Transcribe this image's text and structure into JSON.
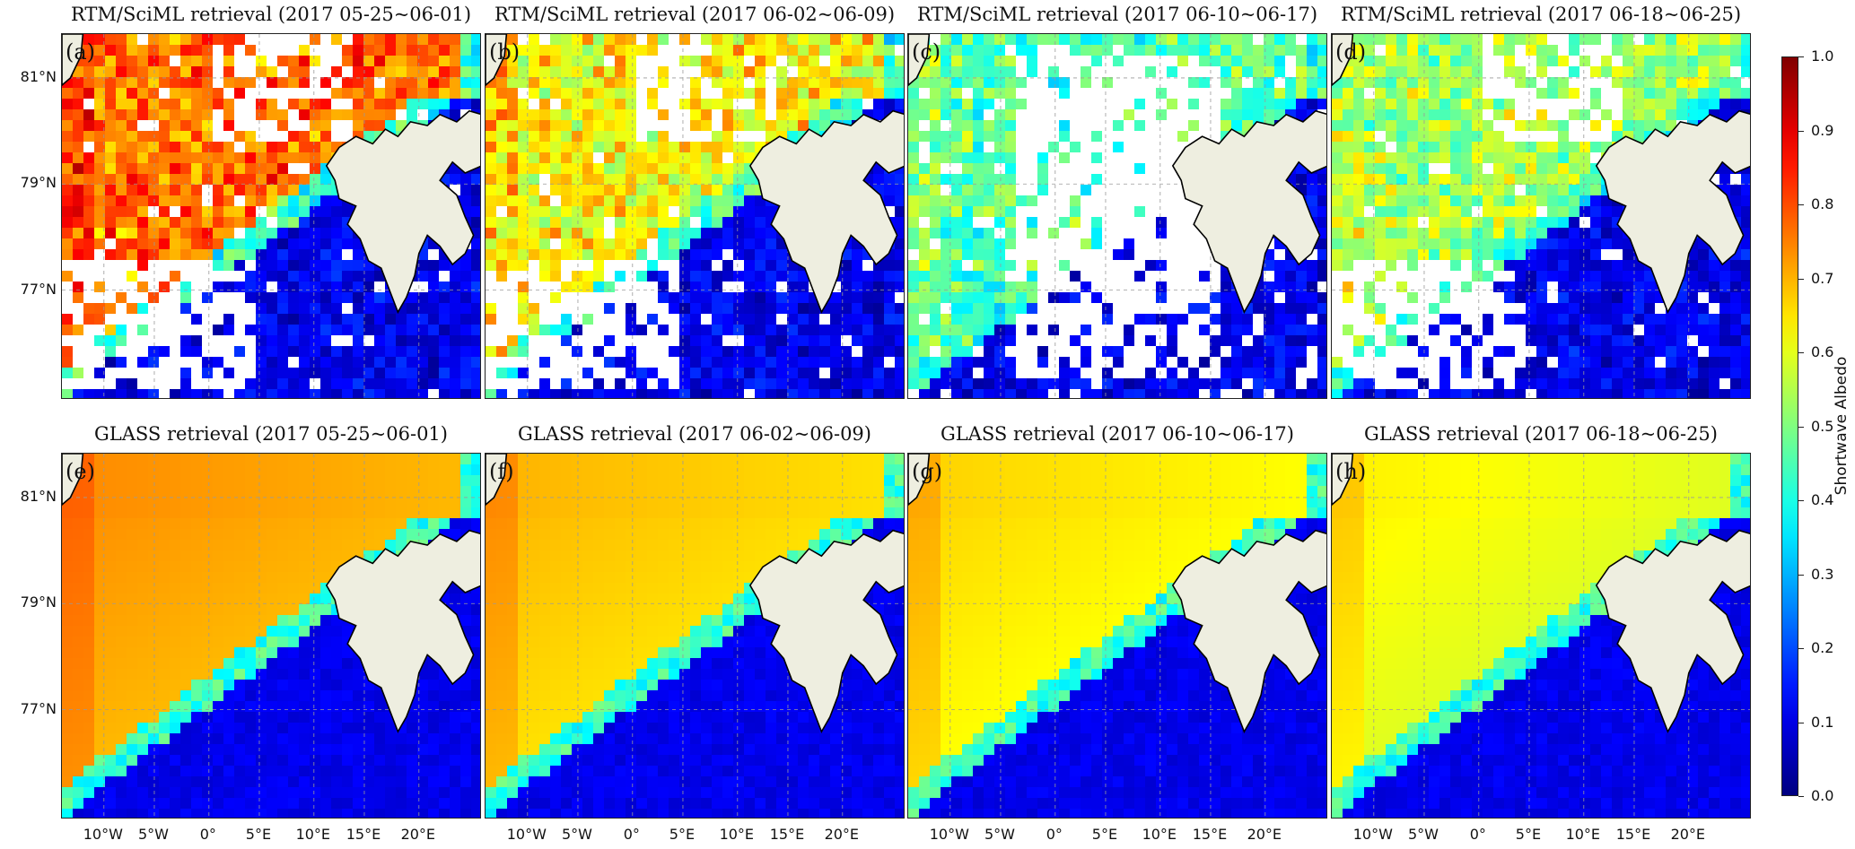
{
  "figure": {
    "colorbar": {
      "label": "Shortwave Albedo",
      "min": 0.0,
      "max": 1.0,
      "ticks": [
        "0.0",
        "0.1",
        "0.2",
        "0.3",
        "0.4",
        "0.5",
        "0.6",
        "0.7",
        "0.8",
        "0.9",
        "1.0"
      ],
      "colormap": "jet"
    },
    "lat_ticks": [
      "81°N",
      "79°N",
      "77°N"
    ],
    "lon_ticks": [
      "10°W",
      "5°W",
      "0°",
      "5°E",
      "10°E",
      "15°E",
      "20°E"
    ],
    "panels": [
      {
        "letter": "(a)",
        "title": "RTM/SciML retrieval (2017 05-25~06-01)",
        "ice_albedo": 0.86,
        "ocean_albedo": 0.08,
        "cloud_gaps": "moderate",
        "pattern": "rtm"
      },
      {
        "letter": "(b)",
        "title": "RTM/SciML retrieval (2017 06-02~06-09)",
        "ice_albedo": 0.72,
        "ocean_albedo": 0.08,
        "cloud_gaps": "moderate",
        "pattern": "rtm"
      },
      {
        "letter": "(c)",
        "title": "RTM/SciML retrieval (2017 06-10~06-17)",
        "ice_albedo": 0.55,
        "ocean_albedo": 0.08,
        "cloud_gaps": "heavy",
        "pattern": "rtm"
      },
      {
        "letter": "(d)",
        "title": "RTM/SciML retrieval (2017 06-18~06-25)",
        "ice_albedo": 0.62,
        "ocean_albedo": 0.08,
        "cloud_gaps": "moderate",
        "pattern": "rtm"
      },
      {
        "letter": "(e)",
        "title": "GLASS retrieval (2017 05-25~06-01)",
        "ice_albedo": 0.74,
        "ocean_albedo": 0.08,
        "cloud_gaps": "none",
        "pattern": "glass"
      },
      {
        "letter": "(f)",
        "title": "GLASS retrieval (2017 06-02~06-09)",
        "ice_albedo": 0.7,
        "ocean_albedo": 0.08,
        "cloud_gaps": "none",
        "pattern": "glass"
      },
      {
        "letter": "(g)",
        "title": "GLASS retrieval (2017 06-10~06-17)",
        "ice_albedo": 0.67,
        "ocean_albedo": 0.08,
        "cloud_gaps": "none",
        "pattern": "glass"
      },
      {
        "letter": "(h)",
        "title": "GLASS retrieval (2017 06-18~06-25)",
        "ice_albedo": 0.64,
        "ocean_albedo": 0.08,
        "cloud_gaps": "none",
        "pattern": "glass"
      }
    ],
    "colors": {
      "land": "#eeeee0",
      "coast": "#000000",
      "frame": "#222222",
      "grid": "#9a9a9a",
      "cloud": "#ffffff"
    }
  }
}
